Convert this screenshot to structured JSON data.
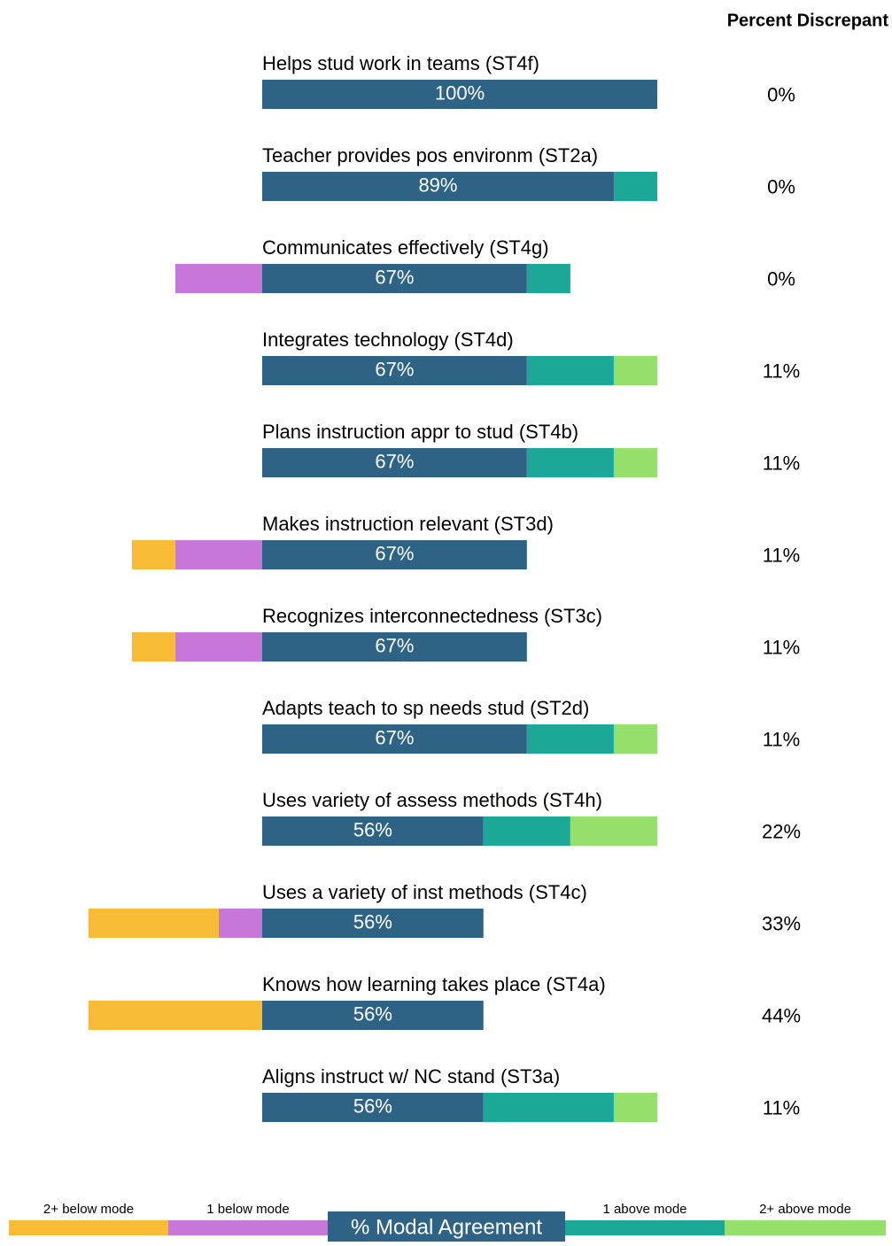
{
  "chart_data": {
    "type": "diverging_bar",
    "categories": [
      "Helps stud work in teams (ST4f)",
      "Teacher provides pos environm (ST2a)",
      "Communicates effectively (ST4g)",
      "Integrates technology (ST4d)",
      "Plans instruction appr to stud (ST4b)",
      "Makes instruction relevant (ST3d)",
      "Recognizes interconnectedness  (ST3c)",
      "Adapts teach to sp needs stud (ST2d)",
      "Uses variety of assess methods (ST4h)",
      "Uses a variety of inst methods (ST4c)",
      "Knows how learning takes place (ST4a)",
      "Aligns instruct w/ NC stand (ST3a)"
    ],
    "series": [
      {
        "name": "2+ below mode",
        "color": "#f7bb36",
        "values": [
          0,
          0,
          0,
          0,
          0,
          11,
          11,
          0,
          0,
          33,
          44,
          0
        ]
      },
      {
        "name": "1 below mode",
        "color": "#c777d9",
        "values": [
          0,
          0,
          22,
          0,
          0,
          22,
          22,
          0,
          0,
          11,
          0,
          0
        ]
      },
      {
        "name": "% Modal Agreement",
        "color": "#2e6385",
        "values": [
          100,
          89,
          67,
          67,
          67,
          67,
          67,
          67,
          56,
          56,
          56,
          56
        ],
        "value_labels": [
          "100%",
          "89%",
          "67%",
          "67%",
          "67%",
          "67%",
          "67%",
          "67%",
          "56%",
          "56%",
          "56%",
          "56%"
        ]
      },
      {
        "name": "1 above mode",
        "color": "#1ba896",
        "values": [
          0,
          11,
          11,
          22,
          22,
          0,
          0,
          22,
          22,
          0,
          0,
          33
        ]
      },
      {
        "name": "2+ above mode",
        "color": "#95e06a",
        "values": [
          0,
          0,
          0,
          11,
          11,
          0,
          0,
          11,
          22,
          0,
          0,
          11
        ]
      }
    ],
    "discrepant": {
      "title": "Percent Discrepant",
      "values": [
        0,
        0,
        0,
        11,
        11,
        11,
        11,
        11,
        22,
        33,
        44,
        11
      ],
      "value_labels": [
        "0%",
        "0%",
        "0%",
        "11%",
        "11%",
        "11%",
        "11%",
        "11%",
        "22%",
        "33%",
        "44%",
        "11%"
      ]
    }
  }
}
